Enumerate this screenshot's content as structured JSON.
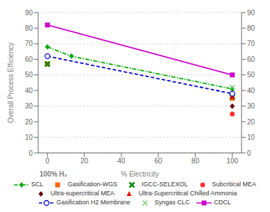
{
  "chart_data": {
    "type": "scatter",
    "y_label": "Overall Process Efficiency",
    "x_label": "% Electricity",
    "annotations": [
      "100% H₂"
    ],
    "xlim": [
      -5,
      105
    ],
    "xticks": [
      0,
      20,
      40,
      60,
      80,
      100
    ],
    "ylim": [
      0,
      90
    ],
    "yticks": [
      0,
      10,
      20,
      30,
      40,
      50,
      60,
      70,
      80,
      90
    ],
    "y2lim": [
      0,
      90
    ],
    "y2ticks": [
      0,
      10,
      20,
      30,
      40,
      50,
      60,
      70,
      80,
      90
    ],
    "grid": true,
    "legend": "bottom",
    "series": [
      {
        "name": "SCL",
        "type": "line",
        "color": "#00aa00",
        "line_style": "dashdot",
        "marker": "diamond",
        "x": [
          0,
          13,
          100
        ],
        "values": [
          68,
          62,
          41
        ]
      },
      {
        "name": "Gasification-WGS",
        "type": "scatter",
        "color": "#ff6600",
        "marker": "square",
        "x": [
          0,
          100
        ],
        "values": [
          57,
          35
        ]
      },
      {
        "name": "IGCC-SELEXOL",
        "type": "scatter",
        "color": "#008800",
        "marker": "filled_x",
        "x": [
          0,
          100
        ],
        "values": [
          57,
          36
        ]
      },
      {
        "name": "Subcritical MEA",
        "type": "scatter",
        "color": "#ff3333",
        "marker": "circle",
        "x": [
          100
        ],
        "values": [
          25
        ]
      },
      {
        "name": "Ultra-supercritical MEA",
        "type": "scatter",
        "color": "#660000",
        "marker": "diamond",
        "x": [
          100
        ],
        "values": [
          30
        ]
      },
      {
        "name": "Ultra-Supercritical Chilled Ammonia",
        "type": "scatter",
        "color": "#ff0000",
        "marker": "triangle",
        "x": [
          100
        ],
        "values": [
          36
        ]
      },
      {
        "name": "Gasification H2 Membrane",
        "type": "line",
        "color": "#0000cc",
        "line_style": "dashed",
        "marker": "open_circle",
        "x": [
          0,
          100
        ],
        "values": [
          62,
          38
        ]
      },
      {
        "name": "Syngas CLC",
        "type": "scatter",
        "color": "#66cc66",
        "marker": "x",
        "x": [
          100
        ],
        "values": [
          42
        ]
      },
      {
        "name": "CDCL",
        "type": "line",
        "color": "#cc00cc",
        "line_style": "solid",
        "marker": "square",
        "x": [
          0,
          100
        ],
        "values": [
          82,
          50
        ]
      }
    ]
  }
}
